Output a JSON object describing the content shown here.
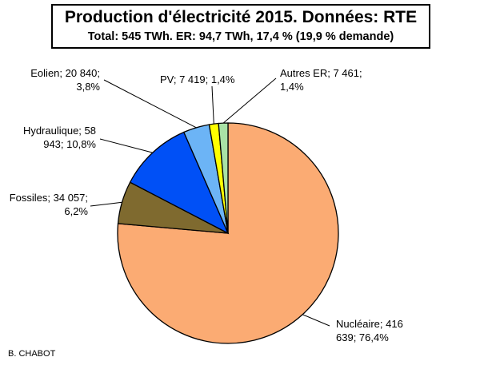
{
  "title": "Production d'électricité 2015. Données: RTE",
  "subtitle": "Total: 545 TWh. ER: 94,7 TWh, 17,4 % (19,9 % demande)",
  "credit": "B. CHABOT",
  "chart_data": {
    "type": "pie",
    "title": "Production d'électricité 2015. Données: RTE",
    "subtitle": "Total: 545 TWh. ER: 94,7 TWh, 17,4 % (19,9 % demande)",
    "start": "12 o'clock, clockwise",
    "slices": [
      {
        "name": "Nucléaire",
        "value": 416639,
        "percent": 76.4,
        "color": "#FBAB73",
        "label_lines": [
          "Nucléaire; 416",
          "639; 76,4%"
        ]
      },
      {
        "name": "Fossiles",
        "value": 34057,
        "percent": 6.2,
        "color": "#7F6A2F",
        "label_lines": [
          "Fossiles; 34 057;",
          "6,2%"
        ]
      },
      {
        "name": "Hydraulique",
        "value": 58943,
        "percent": 10.8,
        "color": "#0050F6",
        "label_lines": [
          "Hydraulique; 58",
          "943; 10,8%"
        ]
      },
      {
        "name": "Eolien",
        "value": 20840,
        "percent": 3.8,
        "color": "#6CB4F6",
        "label_lines": [
          "Eolien; 20 840;",
          "3,8%"
        ]
      },
      {
        "name": "PV",
        "value": 7419,
        "percent": 1.4,
        "color": "#FFFF00",
        "label_lines": [
          "PV; 7 419; 1,4%"
        ]
      },
      {
        "name": "Autres ER",
        "value": 7461,
        "percent": 1.4,
        "color": "#A9E2A6",
        "label_lines": [
          "Autres ER; 7 461;",
          "1,4%"
        ]
      }
    ]
  }
}
